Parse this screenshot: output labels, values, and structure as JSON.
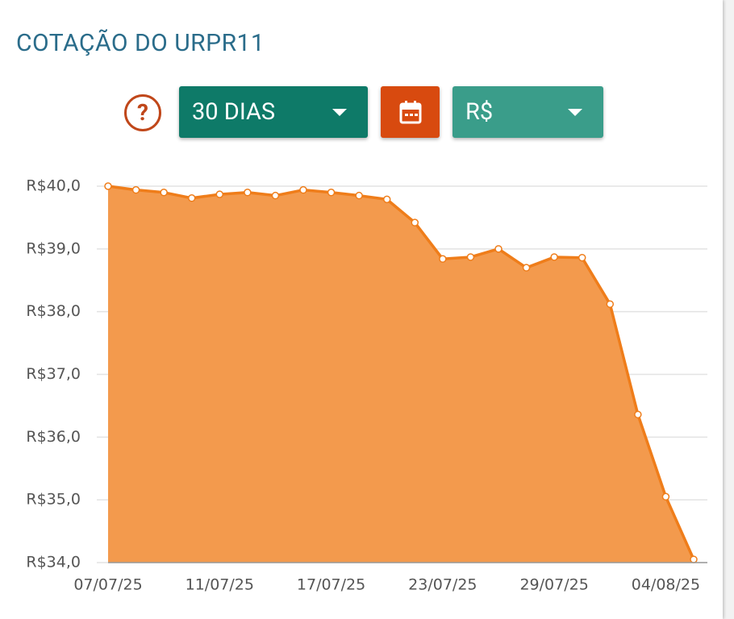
{
  "header": {
    "title": "COTAÇÃO DO URPR11"
  },
  "controls": {
    "help": "?",
    "period": "30 DIAS",
    "currency": "R$"
  },
  "chart_data": {
    "type": "line",
    "categories": [
      "07/07/25",
      null,
      null,
      null,
      "11/07/25",
      null,
      null,
      null,
      "17/07/25",
      null,
      null,
      null,
      "23/07/25",
      null,
      null,
      null,
      "29/07/25",
      null,
      null,
      null,
      "04/08/25",
      null
    ],
    "series": [
      {
        "color": "#ef7d1a",
        "fill": "#f39a4d",
        "values": [
          40.0,
          39.94,
          39.9,
          39.81,
          39.87,
          39.9,
          39.85,
          39.94,
          39.9,
          39.85,
          39.79,
          39.42,
          38.84,
          38.87,
          39.0,
          38.7,
          38.87,
          38.86,
          38.12,
          36.36,
          35.05,
          34.05
        ]
      }
    ],
    "ylim": [
      34,
      40
    ],
    "yticks": [
      {
        "value": 34,
        "label": "R$34,0"
      },
      {
        "value": 35,
        "label": "R$35,0"
      },
      {
        "value": 36,
        "label": "R$36,0"
      },
      {
        "value": 37,
        "label": "R$37,0"
      },
      {
        "value": 38,
        "label": "R$38,0"
      },
      {
        "value": 39,
        "label": "R$39,0"
      },
      {
        "value": 40,
        "label": "R$40,0"
      }
    ],
    "grid": true
  }
}
